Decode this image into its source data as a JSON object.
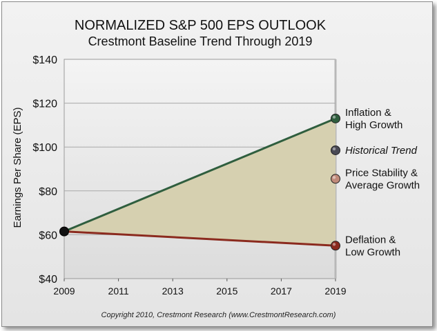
{
  "chart_data": {
    "type": "line",
    "title": "NORMALIZED S&P 500 EPS OUTLOOK",
    "subtitle": "Crestmont Baseline Trend Through 2019",
    "ylabel": "Earnings Per Share (EPS)",
    "xlabel": "",
    "x_ticks": [
      "2009",
      "2011",
      "2013",
      "2015",
      "2017",
      "2019"
    ],
    "x_range": [
      2009,
      2019
    ],
    "y_ticks": [
      "$40",
      "$60",
      "$80",
      "$100",
      "$120",
      "$140"
    ],
    "y_tick_values": [
      40,
      60,
      80,
      100,
      120,
      140
    ],
    "ylim": [
      40,
      140
    ],
    "grid": true,
    "shaded_band": {
      "between": [
        "Inflation & High Growth",
        "Deflation & Low Growth"
      ],
      "color": "#d6d0b0"
    },
    "start_point": {
      "x": 2009,
      "y": 61.5,
      "color": "#111111"
    },
    "series": [
      {
        "label_lines": [
          "Inflation &",
          "High Growth"
        ],
        "italic": false,
        "x": [
          2009,
          2019
        ],
        "y": [
          61.5,
          113
        ],
        "color": "#2f5e3e",
        "line": true
      },
      {
        "label_lines": [
          "Historical Trend"
        ],
        "italic": true,
        "x": [
          2019
        ],
        "y": [
          98.5
        ],
        "color": "#4a4a55",
        "line": false
      },
      {
        "label_lines": [
          "Price Stability &",
          "Average Growth"
        ],
        "italic": false,
        "x": [
          2019
        ],
        "y": [
          85.5
        ],
        "color": "#c08a7a",
        "line": false
      },
      {
        "label_lines": [
          "Deflation &",
          "Low Growth"
        ],
        "italic": false,
        "x": [
          2009,
          2019
        ],
        "y": [
          61.5,
          55
        ],
        "color": "#8b2a1e",
        "line": true
      }
    ]
  },
  "footer": {
    "copyright": "Copyright 2010, Crestmont Research (www.CrestmontResearch.com)"
  }
}
